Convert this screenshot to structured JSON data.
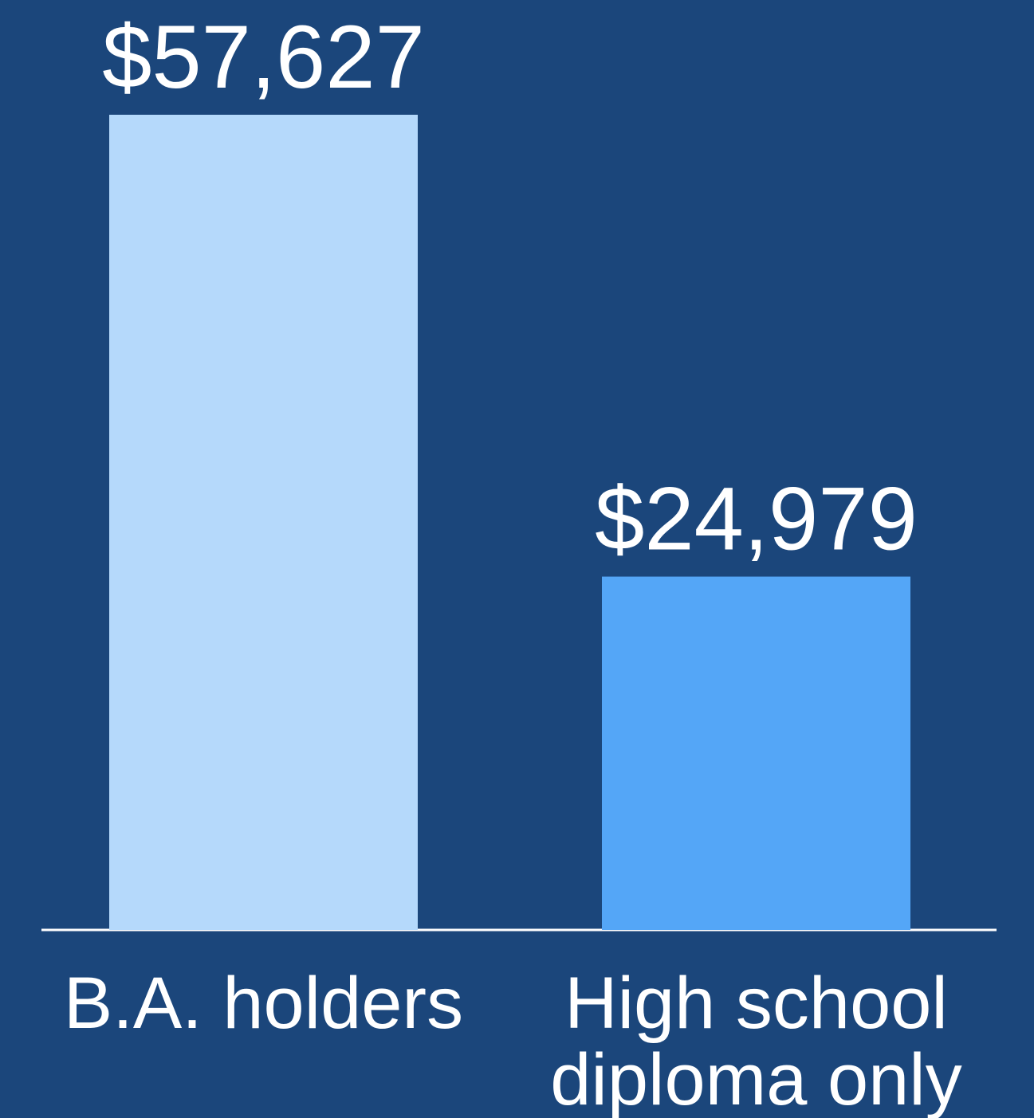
{
  "chart_data": {
    "type": "bar",
    "categories": [
      "B.A. holders",
      "High school diploma only"
    ],
    "values": [
      57627,
      24979
    ],
    "value_labels": [
      "$57,627",
      "$24,979"
    ],
    "colors": [
      "#b5d9fb",
      "#54a6f7"
    ]
  }
}
